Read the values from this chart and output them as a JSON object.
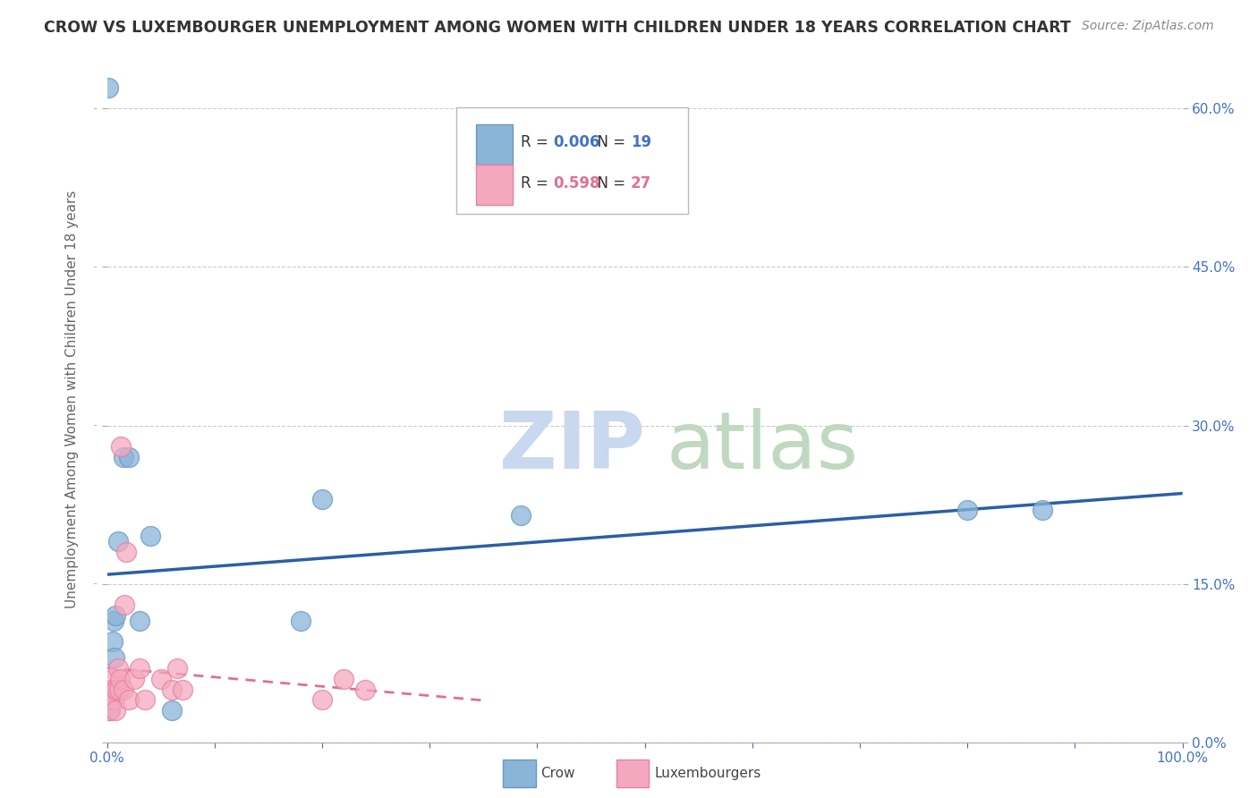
{
  "title": "CROW VS LUXEMBOURGER UNEMPLOYMENT AMONG WOMEN WITH CHILDREN UNDER 18 YEARS CORRELATION CHART",
  "source": "Source: ZipAtlas.com",
  "ylabel": "Unemployment Among Women with Children Under 18 years",
  "xlim": [
    0.0,
    1.0
  ],
  "ylim": [
    0.0,
    0.65
  ],
  "x_ticks": [
    0.0,
    0.1,
    0.2,
    0.3,
    0.4,
    0.5,
    0.6,
    0.7,
    0.8,
    0.9,
    1.0
  ],
  "y_ticks": [
    0.0,
    0.15,
    0.3,
    0.45,
    0.6
  ],
  "crow_color": "#8ab4d8",
  "crow_edge_color": "#6899c4",
  "luxembourger_color": "#f4a8bf",
  "luxembourger_edge_color": "#e8809e",
  "crow_line_color": "#2b5fa5",
  "luxembourger_line_color": "#e07090",
  "crow_R": "0.006",
  "crow_N": "19",
  "luxembourger_R": "0.598",
  "luxembourger_N": "27",
  "crow_scatter_x": [
    0.001,
    0.002,
    0.003,
    0.004,
    0.005,
    0.006,
    0.007,
    0.008,
    0.01,
    0.015,
    0.02,
    0.03,
    0.04,
    0.06,
    0.18,
    0.2,
    0.385,
    0.8,
    0.87
  ],
  "crow_scatter_y": [
    0.62,
    0.04,
    0.03,
    0.05,
    0.095,
    0.115,
    0.08,
    0.12,
    0.19,
    0.27,
    0.27,
    0.115,
    0.195,
    0.03,
    0.115,
    0.23,
    0.215,
    0.22,
    0.22
  ],
  "luxembourger_scatter_x": [
    0.001,
    0.002,
    0.003,
    0.004,
    0.005,
    0.006,
    0.007,
    0.008,
    0.009,
    0.01,
    0.011,
    0.012,
    0.013,
    0.015,
    0.016,
    0.018,
    0.02,
    0.025,
    0.03,
    0.035,
    0.05,
    0.06,
    0.065,
    0.07,
    0.2,
    0.22,
    0.24
  ],
  "luxembourger_scatter_y": [
    0.04,
    0.03,
    0.05,
    0.04,
    0.06,
    0.05,
    0.04,
    0.03,
    0.05,
    0.07,
    0.05,
    0.06,
    0.28,
    0.05,
    0.13,
    0.18,
    0.04,
    0.06,
    0.07,
    0.04,
    0.06,
    0.05,
    0.07,
    0.05,
    0.04,
    0.06,
    0.05
  ],
  "grid_color": "#cccccc",
  "tick_color": "#4472c4",
  "title_color": "#333333",
  "source_color": "#888888",
  "ylabel_color": "#666666",
  "watermark_zip_color": "#c8d8ee",
  "watermark_atlas_color": "#c0d8c0"
}
